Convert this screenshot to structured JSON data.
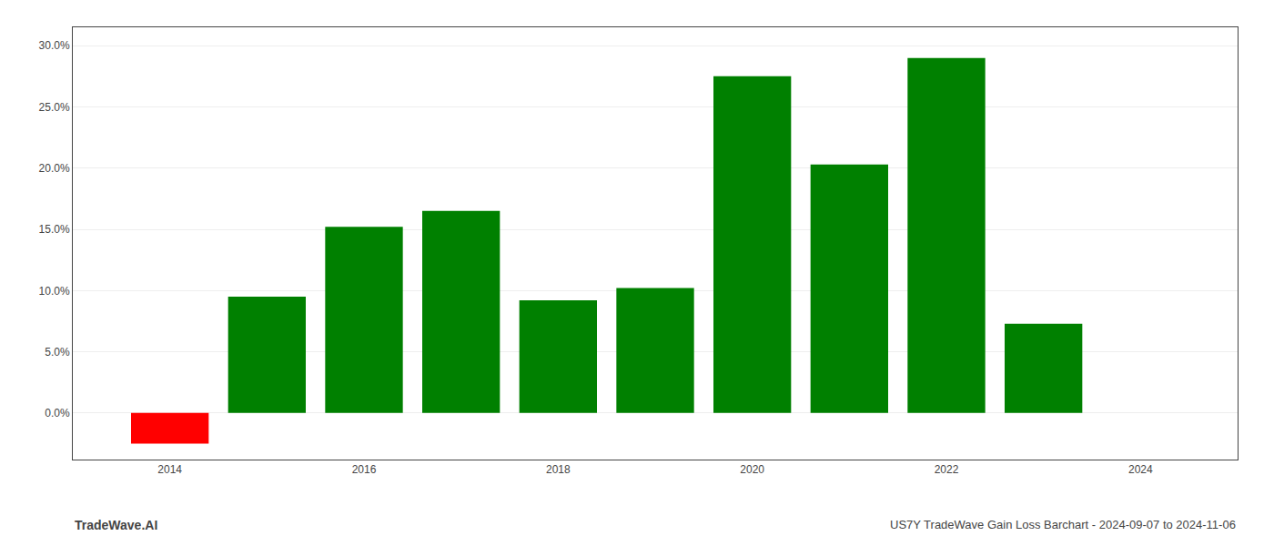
{
  "chart_data": {
    "type": "bar",
    "x": [
      2014,
      2015,
      2016,
      2017,
      2018,
      2019,
      2020,
      2021,
      2022,
      2023
    ],
    "values": [
      -0.025,
      0.095,
      0.152,
      0.165,
      0.092,
      0.102,
      0.275,
      0.203,
      0.29,
      0.073
    ],
    "colors": [
      "#ff0000",
      "#008000",
      "#008000",
      "#008000",
      "#008000",
      "#008000",
      "#008000",
      "#008000",
      "#008000",
      "#008000"
    ],
    "xlim": [
      2013,
      2025
    ],
    "xticks": [
      2014,
      2016,
      2018,
      2020,
      2022,
      2024
    ],
    "ylim": [
      -0.038,
      0.315
    ],
    "yticks": [
      {
        "value": 0.0,
        "label": "0.0%"
      },
      {
        "value": 0.05,
        "label": "5.0%"
      },
      {
        "value": 0.1,
        "label": "10.0%"
      },
      {
        "value": 0.15,
        "label": "15.0%"
      },
      {
        "value": 0.2,
        "label": "20.0%"
      },
      {
        "value": 0.25,
        "label": "25.0%"
      },
      {
        "value": 0.3,
        "label": "30.0%"
      }
    ],
    "grid": true,
    "annotations": [
      "TradeWave.AI",
      "US7Y TradeWave Gain Loss Barchart - 2024-09-07 to 2024-11-06"
    ]
  }
}
